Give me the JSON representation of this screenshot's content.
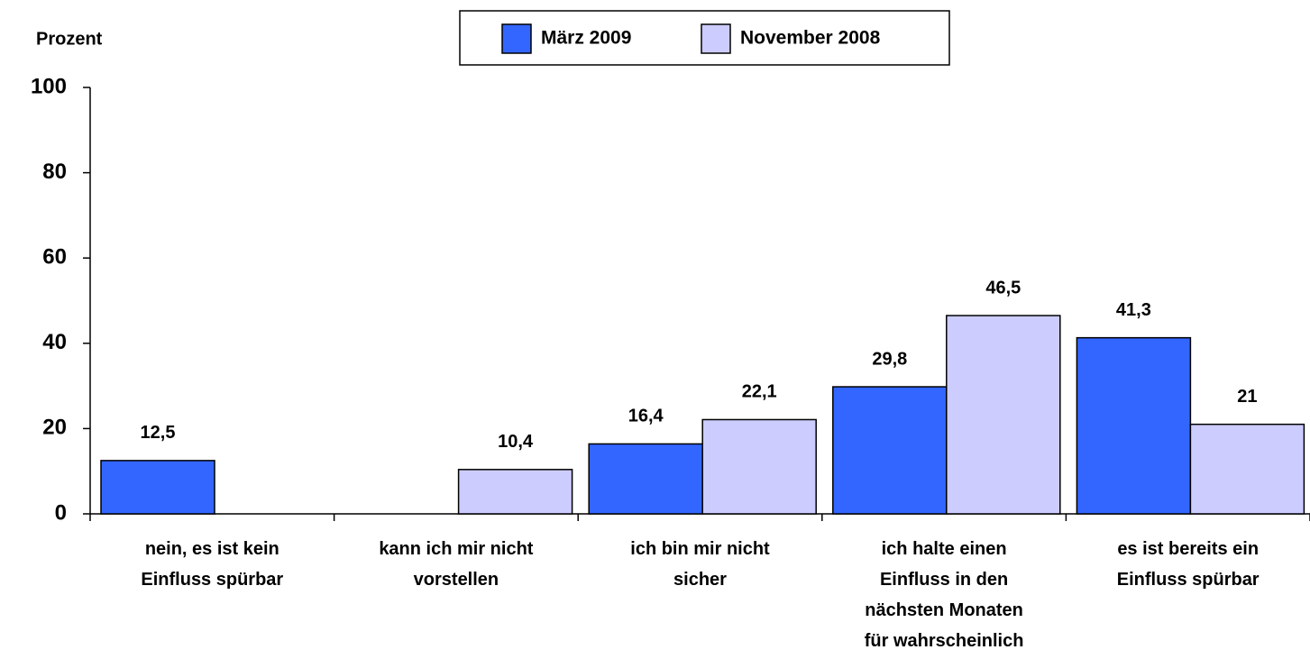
{
  "chart_data": {
    "type": "bar",
    "y_axis_label": "Prozent",
    "categories": [
      "nein, es ist kein\nEinfluss spürbar",
      "kann ich mir nicht\nvorstellen",
      "ich bin mir nicht\nsicher",
      "ich halte einen\nEinfluss in den\nnächsten Monaten\nfür wahrscheinlich",
      "es ist bereits ein\nEinfluss spürbar"
    ],
    "series": [
      {
        "name": "März 2009",
        "color": "#3366ff",
        "values": [
          12.5,
          null,
          16.4,
          29.8,
          41.3
        ],
        "value_labels": [
          "12,5",
          null,
          "16,4",
          "29,8",
          "41,3"
        ]
      },
      {
        "name": "November 2008",
        "color": "#ccccff",
        "values": [
          null,
          10.4,
          22.1,
          46.5,
          21
        ],
        "value_labels": [
          null,
          "10,4",
          "22,1",
          "46,5",
          "21"
        ]
      }
    ],
    "ylim": [
      0,
      100
    ],
    "yticks": [
      0,
      20,
      40,
      60,
      80,
      100
    ],
    "grid": false,
    "legend": "top"
  }
}
